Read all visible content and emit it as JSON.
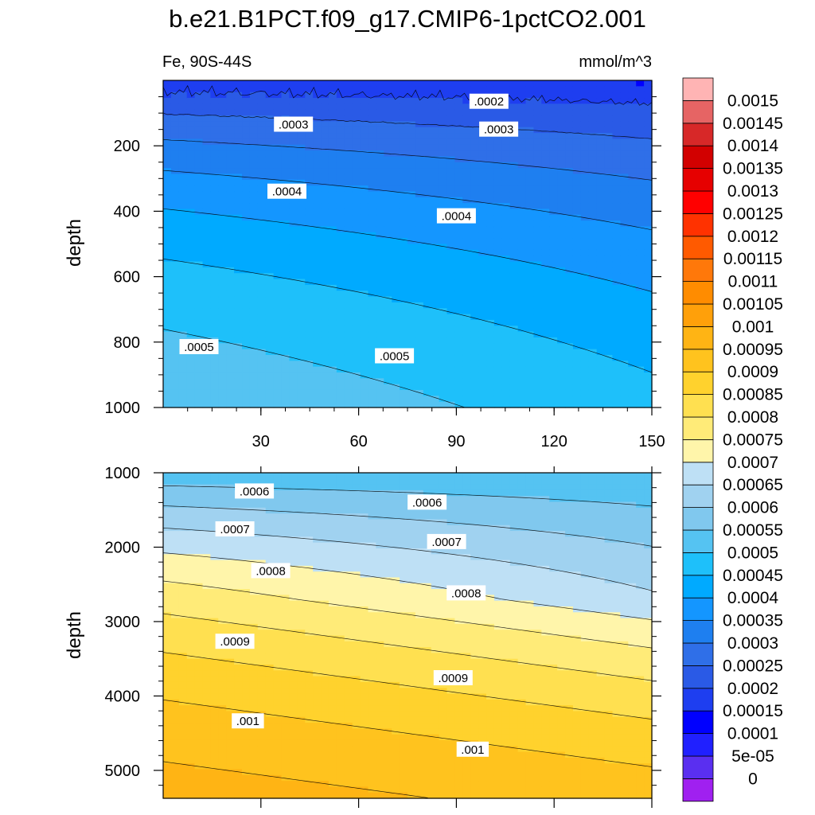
{
  "title": "b.e21.B1PCT.f09_g17.CMIP6-1pctCO2.001",
  "chart_data": [
    {
      "type": "heatmap",
      "subtitle_left": "Fe, 90S-44S",
      "subtitle_right": "mmol/m^3",
      "ylabel": "depth",
      "xlabel": "",
      "xlim": [
        0,
        150
      ],
      "ylim": [
        1000,
        0
      ],
      "x_ticks": [
        "30",
        "60",
        "90",
        "120",
        "150"
      ],
      "y_ticks": [
        "200",
        "400",
        "600",
        "800",
        "1000"
      ],
      "contour_labels": [
        {
          "text": ".0002",
          "x": 100,
          "y": 65
        },
        {
          "text": ".0003",
          "x": 40,
          "y": 135
        },
        {
          "text": ".0003",
          "x": 103,
          "y": 150
        },
        {
          "text": ".0004",
          "x": 38,
          "y": 340
        },
        {
          "text": ".0004",
          "x": 90,
          "y": 415
        },
        {
          "text": ".0005",
          "x": 11,
          "y": 815
        },
        {
          "text": ".0005",
          "x": 71,
          "y": 843
        }
      ]
    },
    {
      "type": "heatmap",
      "ylabel": "depth",
      "xlabel": "",
      "xlim": [
        0,
        150
      ],
      "ylim": [
        5375,
        1000
      ],
      "y_ticks": [
        "1000",
        "2000",
        "3000",
        "4000",
        "5000"
      ],
      "contour_labels": [
        {
          "text": ".0006",
          "x": 28,
          "y": 1250
        },
        {
          "text": ".0006",
          "x": 81,
          "y": 1400
        },
        {
          "text": ".0007",
          "x": 22,
          "y": 1760
        },
        {
          "text": ".0007",
          "x": 87,
          "y": 1930
        },
        {
          "text": ".0008",
          "x": 33,
          "y": 2320
        },
        {
          "text": ".0008",
          "x": 93,
          "y": 2620
        },
        {
          "text": ".0009",
          "x": 22,
          "y": 3270
        },
        {
          "text": ".0009",
          "x": 89,
          "y": 3760
        },
        {
          "text": ".001",
          "x": 26,
          "y": 4340
        },
        {
          "text": ".001",
          "x": 95,
          "y": 4720
        }
      ]
    }
  ],
  "colorbar": {
    "colors": [
      "#a020f0",
      "#5a2ff0",
      "#2020ff",
      "#0000ff",
      "#1e3ef0",
      "#2a5ae6",
      "#2f6fe8",
      "#1e7ff0",
      "#1496ff",
      "#00aaff",
      "#1ec0fa",
      "#55c3f2",
      "#80c8ee",
      "#a0d2f0",
      "#bee0f5",
      "#fff5aa",
      "#ffeb78",
      "#ffe050",
      "#ffd22d",
      "#ffc31e",
      "#ffb414",
      "#ffa00a",
      "#ff8c00",
      "#ff780a",
      "#ff5a00",
      "#ff3200",
      "#ff0000",
      "#e60000",
      "#d20000",
      "#d72828",
      "#e66464",
      "#ffb4b4"
    ],
    "labels": [
      "0",
      "5e-05",
      "0.0001",
      "0.00015",
      "0.0002",
      "0.00025",
      "0.0003",
      "0.00035",
      "0.0004",
      "0.00045",
      "0.0005",
      "0.00055",
      "0.0006",
      "0.00065",
      "0.0007",
      "0.00075",
      "0.0008",
      "0.00085",
      "0.0009",
      "0.00095",
      "0.001",
      "0.00105",
      "0.0011",
      "0.00115",
      "0.0012",
      "0.00125",
      "0.0013",
      "0.00135",
      "0.0014",
      "0.00145",
      "0.0015"
    ]
  }
}
